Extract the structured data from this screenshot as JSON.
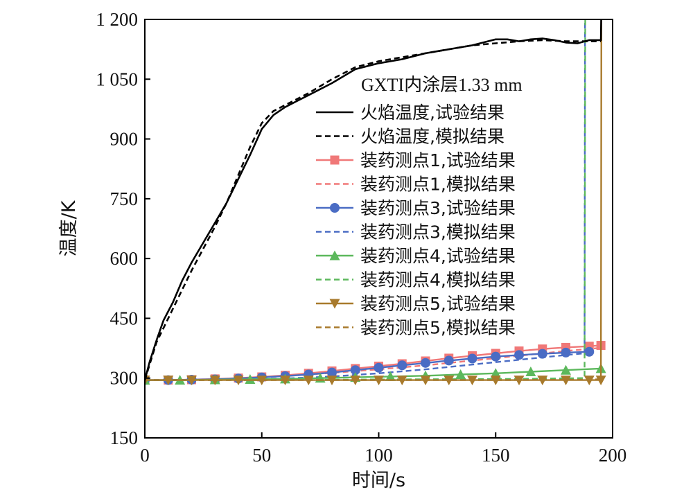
{
  "chart_data": {
    "type": "line",
    "title": "",
    "xlabel": "时间/s",
    "ylabel": "温度/K",
    "xlim": [
      0,
      200
    ],
    "ylim": [
      150,
      1200
    ],
    "xticks": [
      0,
      50,
      100,
      150,
      200
    ],
    "xtick_labels": [
      "0",
      "50",
      "100",
      "150",
      "200"
    ],
    "yticks": [
      150,
      300,
      450,
      600,
      750,
      900,
      1050,
      1200
    ],
    "ytick_labels": [
      "150",
      "300",
      "450",
      "600",
      "750",
      "900",
      "1 050",
      "1 200"
    ],
    "grid": false,
    "legend": {
      "title": "GXTI内涂层1.33 mm",
      "position": "inside-upper-center-right"
    },
    "series": [
      {
        "name": "火焰温度,试验结果",
        "color": "#000000",
        "style": "solid",
        "marker": "none",
        "x": [
          0,
          2,
          5,
          8,
          12,
          16,
          20,
          25,
          30,
          35,
          40,
          45,
          50,
          55,
          60,
          65,
          70,
          80,
          90,
          100,
          110,
          120,
          130,
          140,
          150,
          155,
          160,
          165,
          170,
          175,
          180,
          185,
          190,
          195,
          195.1
        ],
        "y": [
          295,
          340,
          395,
          445,
          490,
          545,
          590,
          640,
          690,
          740,
          800,
          860,
          925,
          960,
          980,
          995,
          1010,
          1040,
          1075,
          1090,
          1100,
          1115,
          1125,
          1135,
          1150,
          1150,
          1145,
          1150,
          1152,
          1148,
          1142,
          1140,
          1148,
          1148,
          1200
        ]
      },
      {
        "name": "火焰温度,模拟结果",
        "color": "#000000",
        "style": "dashed",
        "marker": "none",
        "x": [
          0,
          5,
          10,
          15,
          20,
          25,
          30,
          35,
          40,
          45,
          50,
          55,
          60,
          70,
          80,
          90,
          100,
          110,
          120,
          130,
          140,
          150,
          160,
          170,
          180,
          190,
          195
        ],
        "y": [
          295,
          390,
          450,
          510,
          570,
          625,
          680,
          740,
          810,
          880,
          940,
          970,
          985,
          1015,
          1050,
          1080,
          1095,
          1105,
          1115,
          1125,
          1135,
          1140,
          1145,
          1148,
          1145,
          1145,
          1145
        ]
      },
      {
        "name": "装药测点1,试验结果",
        "color": "#f07878",
        "style": "solid",
        "marker": "square",
        "x": [
          0,
          10,
          20,
          30,
          40,
          50,
          60,
          70,
          80,
          90,
          100,
          110,
          120,
          130,
          140,
          150,
          160,
          170,
          180,
          190,
          195
        ],
        "y": [
          295,
          295,
          296,
          298,
          300,
          303,
          307,
          312,
          318,
          324,
          330,
          336,
          343,
          350,
          356,
          362,
          368,
          373,
          377,
          380,
          382
        ]
      },
      {
        "name": "装药测点1,模拟结果",
        "color": "#f07878",
        "style": "dashed",
        "marker": "none",
        "x": [
          0,
          20,
          40,
          60,
          80,
          100,
          120,
          140,
          160,
          180,
          195
        ],
        "y": [
          295,
          296,
          299,
          305,
          313,
          322,
          332,
          344,
          356,
          368,
          376
        ]
      },
      {
        "name": "装药测点3,试验结果",
        "color": "#4a6cc4",
        "style": "solid",
        "marker": "circle",
        "x": [
          0,
          10,
          20,
          30,
          40,
          50,
          60,
          70,
          80,
          90,
          100,
          110,
          120,
          130,
          140,
          150,
          160,
          170,
          180,
          190
        ],
        "y": [
          295,
          295,
          296,
          297,
          299,
          302,
          305,
          309,
          314,
          320,
          326,
          332,
          338,
          344,
          349,
          354,
          358,
          361,
          364,
          366
        ]
      },
      {
        "name": "装药测点3,模拟结果",
        "color": "#4a6cc4",
        "style": "dashed",
        "marker": "none",
        "x": [
          0,
          20,
          40,
          60,
          80,
          100,
          120,
          140,
          160,
          180,
          188,
          188.2
        ],
        "y": [
          295,
          295,
          296,
          299,
          304,
          312,
          322,
          334,
          346,
          358,
          362,
          1200
        ]
      },
      {
        "name": "装药测点4,试验结果",
        "color": "#5cb85c",
        "style": "solid",
        "marker": "triangle",
        "x": [
          0,
          15,
          30,
          45,
          60,
          75,
          90,
          105,
          120,
          135,
          150,
          165,
          180,
          195
        ],
        "y": [
          295,
          295,
          296,
          297,
          298,
          300,
          302,
          304,
          306,
          309,
          312,
          316,
          320,
          324
        ]
      },
      {
        "name": "装药测点4,模拟结果",
        "color": "#5cb85c",
        "style": "dashed",
        "marker": "none",
        "x": [
          0,
          40,
          80,
          120,
          160,
          188,
          188.3
        ],
        "y": [
          295,
          295,
          296,
          297,
          298,
          300,
          1200
        ]
      },
      {
        "name": "装药测点5,试验结果",
        "color": "#a87a2c",
        "style": "solid",
        "marker": "triangle-down",
        "x": [
          0,
          10,
          20,
          30,
          40,
          50,
          60,
          70,
          80,
          90,
          100,
          110,
          120,
          130,
          140,
          150,
          160,
          170,
          180,
          190,
          195,
          195.2
        ],
        "y": [
          295,
          295,
          295,
          295,
          295,
          295,
          295,
          295,
          295,
          295,
          295,
          295,
          295,
          295,
          295,
          295,
          295,
          295,
          295,
          295,
          295,
          1200
        ]
      },
      {
        "name": "装药测点5,模拟结果",
        "color": "#a87a2c",
        "style": "dashed",
        "marker": "none",
        "x": [
          0,
          50,
          100,
          150,
          188,
          194
        ],
        "y": [
          295,
          295,
          295,
          295,
          296,
          297
        ]
      }
    ]
  }
}
